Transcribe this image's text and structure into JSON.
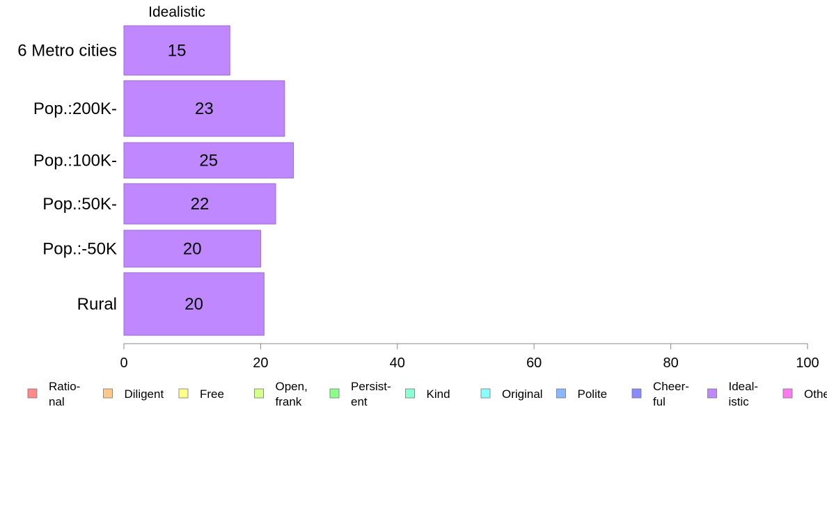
{
  "chart_data": {
    "type": "bar",
    "orientation": "horizontal",
    "series_label": "Idealistic",
    "categories": [
      "6 Metro cities",
      "Pop.:200K-",
      "Pop.:100K-",
      "Pop.:50K-",
      "Pop.:-50K",
      "Rural"
    ],
    "values": [
      15.5,
      23.5,
      24.8,
      22.2,
      20.0,
      20.5
    ],
    "value_labels": [
      "15",
      "23",
      "25",
      "22",
      "20",
      "20"
    ],
    "xlim": [
      0,
      100
    ],
    "xticks": [
      "0",
      "20",
      "40",
      "60",
      "80",
      "100"
    ],
    "bar_color": "#bf88ff",
    "bar_stroke": "#9b6ad0",
    "grid": false,
    "legend_position": "bottom",
    "legend": [
      {
        "lines": [
          "Ratio-",
          "nal"
        ],
        "color": "#ff8a8a"
      },
      {
        "lines": [
          "Diligent"
        ],
        "color": "#ffc88a"
      },
      {
        "lines": [
          "Free"
        ],
        "color": "#ffff8a"
      },
      {
        "lines": [
          "Open,",
          "frank"
        ],
        "color": "#d4ff8a"
      },
      {
        "lines": [
          "Persist-",
          "ent"
        ],
        "color": "#8aff8a"
      },
      {
        "lines": [
          "Kind"
        ],
        "color": "#8affd4"
      },
      {
        "lines": [
          "Original"
        ],
        "color": "#8affff"
      },
      {
        "lines": [
          "Polite"
        ],
        "color": "#8ab8ff"
      },
      {
        "lines": [
          "Cheer-",
          "ful"
        ],
        "color": "#8a8aff"
      },
      {
        "lines": [
          "Ideal-",
          "istic"
        ],
        "color": "#bf88ff"
      },
      {
        "lines": [
          "Others"
        ],
        "color": "#ff7af0"
      }
    ]
  }
}
